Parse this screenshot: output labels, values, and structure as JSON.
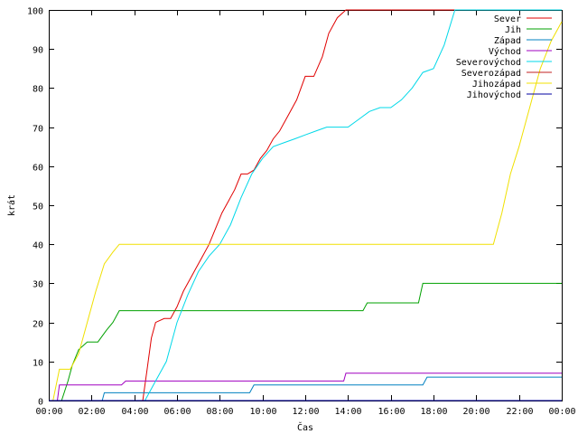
{
  "chart_data": {
    "type": "line",
    "title": "",
    "xlabel": "Čas",
    "ylabel": "krát",
    "xlim": [
      0,
      24
    ],
    "ylim": [
      0,
      100
    ],
    "x_ticks": [
      {
        "value": 0,
        "label": "00:00"
      },
      {
        "value": 2,
        "label": "02:00"
      },
      {
        "value": 4,
        "label": "04:00"
      },
      {
        "value": 6,
        "label": "06:00"
      },
      {
        "value": 8,
        "label": "08:00"
      },
      {
        "value": 10,
        "label": "10:00"
      },
      {
        "value": 12,
        "label": "12:00"
      },
      {
        "value": 14,
        "label": "14:00"
      },
      {
        "value": 16,
        "label": "16:00"
      },
      {
        "value": 18,
        "label": "18:00"
      },
      {
        "value": 20,
        "label": "20:00"
      },
      {
        "value": 22,
        "label": "22:00"
      },
      {
        "value": 24,
        "label": "00:00"
      }
    ],
    "y_ticks": [
      0,
      10,
      20,
      30,
      40,
      50,
      60,
      70,
      80,
      90,
      100
    ],
    "grid": false,
    "legend_position": "top-right",
    "series": [
      {
        "name": "Sever",
        "color": "#e00000",
        "x": [
          0,
          4.4,
          4.6,
          4.8,
          5.0,
          5.4,
          5.7,
          6.0,
          6.3,
          6.6,
          6.9,
          7.2,
          7.5,
          7.8,
          8.1,
          8.4,
          8.7,
          9.0,
          9.3,
          9.6,
          9.9,
          10.2,
          10.5,
          10.8,
          11.2,
          11.6,
          12.0,
          12.4,
          12.8,
          13.1,
          13.5,
          13.9,
          24
        ],
        "y": [
          0,
          0,
          8,
          16,
          20,
          21,
          21,
          24,
          28,
          31,
          34,
          37,
          40,
          44,
          48,
          51,
          54,
          58,
          58,
          59,
          62,
          64,
          67,
          69,
          73,
          77,
          83,
          83,
          88,
          94,
          98,
          100,
          100
        ]
      },
      {
        "name": "Jih",
        "color": "#00a000",
        "x": [
          0,
          0.6,
          0.9,
          1.1,
          1.4,
          1.8,
          2.3,
          2.7,
          3.0,
          3.3,
          14.7,
          14.9,
          17.3,
          17.5,
          24
        ],
        "y": [
          0,
          0,
          5,
          9,
          13,
          15,
          15,
          18,
          20,
          23,
          23,
          25,
          25,
          30,
          30
        ]
      },
      {
        "name": "Západ",
        "color": "#0080c0",
        "x": [
          0,
          2.5,
          2.6,
          9.4,
          9.6,
          17.5,
          17.7,
          24
        ],
        "y": [
          0,
          0,
          2,
          2,
          4,
          4,
          6,
          6
        ]
      },
      {
        "name": "Východ",
        "color": "#a000c0",
        "x": [
          0,
          0.4,
          0.5,
          3.4,
          3.6,
          13.8,
          13.9,
          24
        ],
        "y": [
          0,
          0,
          4,
          4,
          5,
          5,
          7,
          7
        ]
      },
      {
        "name": "Severovýchod",
        "color": "#00d8e8",
        "x": [
          0,
          4.5,
          5.0,
          5.5,
          6.0,
          6.5,
          7.0,
          7.5,
          8.0,
          8.5,
          9.0,
          9.5,
          10.0,
          10.5,
          11.0,
          11.5,
          12.0,
          12.5,
          13.0,
          13.5,
          14.0,
          14.5,
          15.0,
          15.5,
          16.0,
          16.5,
          17.0,
          17.5,
          18.0,
          18.5,
          19.0,
          24
        ],
        "y": [
          0,
          0,
          5,
          10,
          20,
          27,
          33,
          37,
          40,
          45,
          52,
          58,
          62,
          65,
          66,
          67,
          68,
          69,
          70,
          70,
          70,
          72,
          74,
          75,
          75,
          77,
          80,
          84,
          85,
          91,
          100,
          100
        ]
      },
      {
        "name": "Severozápad",
        "color": "#c02020",
        "x": [
          0,
          24
        ],
        "y": [
          0,
          0
        ]
      },
      {
        "name": "Jihozápad",
        "color": "#f0e000",
        "x": [
          0,
          0.2,
          0.5,
          1.0,
          1.4,
          1.8,
          2.2,
          2.6,
          3.0,
          3.3,
          20.8,
          21.2,
          21.6,
          22.0,
          22.5,
          23.0,
          23.5,
          24
        ],
        "y": [
          0,
          0,
          8,
          8,
          12,
          20,
          28,
          35,
          38,
          40,
          40,
          48,
          58,
          65,
          75,
          85,
          92,
          97
        ]
      },
      {
        "name": "Jihovýchod",
        "color": "#0000a0",
        "x": [
          0,
          24
        ],
        "y": [
          0,
          0
        ]
      }
    ]
  }
}
